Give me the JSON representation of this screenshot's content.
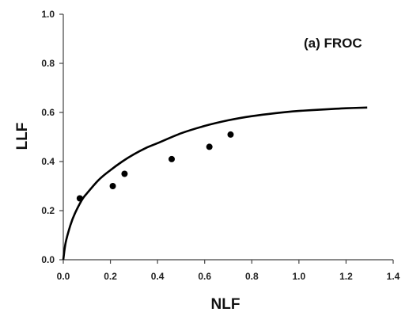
{
  "chart_data": {
    "type": "scatter",
    "annotation": "(a) FROC",
    "xlabel": "NLF",
    "ylabel": "LLF",
    "xlim": [
      0.0,
      1.4
    ],
    "ylim": [
      0.0,
      1.0
    ],
    "x_ticks": [
      "0.0",
      "0.2",
      "0.4",
      "0.6",
      "0.8",
      "1.0",
      "1.2",
      "1.4"
    ],
    "y_ticks": [
      "0.0",
      "0.2",
      "0.4",
      "0.6",
      "0.8",
      "1.0"
    ],
    "grid": false,
    "series": [
      {
        "kind": "points",
        "x": [
          0.07,
          0.21,
          0.26,
          0.46,
          0.62,
          0.71
        ],
        "y": [
          0.25,
          0.3,
          0.35,
          0.41,
          0.46,
          0.51
        ]
      },
      {
        "kind": "fitted-curve",
        "x": [
          0.0,
          0.01,
          0.03,
          0.05,
          0.08,
          0.1,
          0.15,
          0.2,
          0.25,
          0.3,
          0.35,
          0.4,
          0.5,
          0.6,
          0.7,
          0.8,
          0.9,
          1.0,
          1.1,
          1.2,
          1.29
        ],
        "y": [
          0.0,
          0.07,
          0.14,
          0.19,
          0.245,
          0.27,
          0.325,
          0.365,
          0.4,
          0.43,
          0.455,
          0.475,
          0.515,
          0.545,
          0.568,
          0.585,
          0.597,
          0.606,
          0.612,
          0.617,
          0.62
        ]
      }
    ],
    "colors": {
      "marks": "#000000",
      "axis": "#444444"
    }
  }
}
